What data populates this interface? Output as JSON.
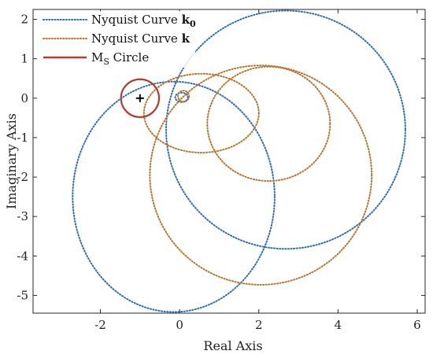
{
  "chart_data": {
    "type": "line",
    "title": "",
    "xlabel": "Real Axis",
    "ylabel": "Imaginary Axis",
    "xlim": [
      -3.7,
      6.2
    ],
    "ylim": [
      -5.45,
      2.25
    ],
    "xticks": [
      -2,
      0,
      2,
      4,
      6
    ],
    "yticks": [
      -5,
      -4,
      -3,
      -2,
      -1,
      0,
      1,
      2
    ],
    "xtick_labels": [
      "-2",
      "0",
      "2",
      "4",
      "6"
    ],
    "ytick_labels": [
      "-5",
      "-4",
      "-3",
      "-2",
      "-1",
      "0",
      "1",
      "2"
    ],
    "grid": false,
    "legend_position": "top-left",
    "critical_point": {
      "x": -1,
      "y": 0,
      "marker": "+"
    },
    "series": [
      {
        "name": "Nyquist Curve k0",
        "legend_text": "Nyquist Curve ",
        "legend_bold": "k",
        "legend_sub": "0",
        "color": "#2f6db5",
        "style": "dotted",
        "circles": [
          {
            "cx": 2.68,
            "cy": -0.8,
            "r": 3.02
          },
          {
            "cx": 2.68,
            "cy": -0.8,
            "rx": 3.02,
            "ry": 3.0
          }
        ],
        "loops": [
          {
            "cx": -0.15,
            "cy": -2.5,
            "rx": 2.55,
            "ry": 2.92
          }
        ]
      },
      {
        "name": "Nyquist Curve k",
        "legend_text": "Nyquist Curve ",
        "legend_bold": "k",
        "legend_sub": "",
        "color": "#b9742e",
        "style": "dotted",
        "loops": [
          {
            "cx": 2.05,
            "cy": -1.95,
            "rx": 2.8,
            "ry": 2.78
          },
          {
            "cx": 0.55,
            "cy": -0.38,
            "rx": 1.45,
            "ry": 1.0
          }
        ]
      },
      {
        "name": "MS Circle",
        "legend_text": "M",
        "legend_sub": "S",
        "legend_after": " Circle",
        "color": "#b53a2a",
        "style": "solid",
        "circle": {
          "cx": -1.0,
          "cy": 0.0,
          "r": 0.48
        }
      }
    ]
  }
}
